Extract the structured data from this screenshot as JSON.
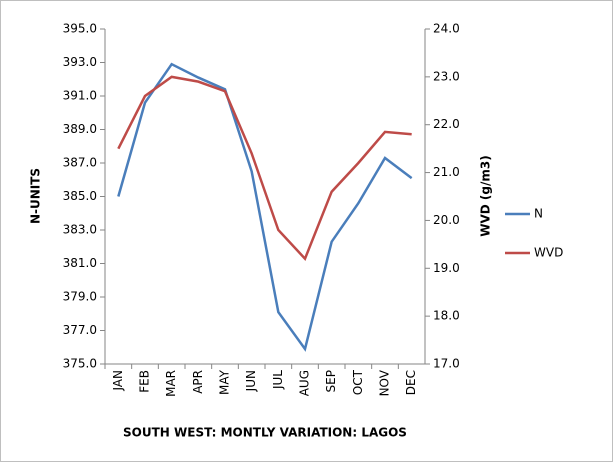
{
  "chart_data": {
    "type": "line",
    "title": "SOUTH WEST: MONTLY VARIATION: LAGOS",
    "y_label": "N-UNITS",
    "y2_label": "WVD (g/m3)",
    "categories": [
      "JAN",
      "FEB",
      "MAR",
      "APR",
      "MAY",
      "JUN",
      "JUL",
      "AUG",
      "SEP",
      "OCT",
      "NOV",
      "DEC"
    ],
    "series": [
      {
        "name": "N",
        "color": "#4a7ebb",
        "values": [
          385.0,
          390.6,
          392.9,
          392.1,
          391.4,
          386.5,
          378.1,
          375.9,
          382.3,
          384.6,
          387.3,
          386.1
        ]
      },
      {
        "name": "WVD",
        "color": "#be4b48",
        "axis": "y2",
        "values": [
          21.5,
          22.6,
          23.0,
          22.9,
          22.7,
          21.4,
          19.8,
          19.2,
          20.6,
          21.2,
          21.85,
          21.8
        ]
      }
    ],
    "ylim": [
      375,
      395
    ],
    "yticks": [
      {
        "value": 375,
        "label": "375.0"
      },
      {
        "value": 377,
        "label": "377.0"
      },
      {
        "value": 379,
        "label": "379.0"
      },
      {
        "value": 381,
        "label": "381.0"
      },
      {
        "value": 383,
        "label": "383.0"
      },
      {
        "value": 385,
        "label": "385.0"
      },
      {
        "value": 387,
        "label": "387.0"
      },
      {
        "value": 389,
        "label": "389.0"
      },
      {
        "value": 391,
        "label": "391.0"
      },
      {
        "value": 393,
        "label": "393.0"
      },
      {
        "value": 395,
        "label": "395.0"
      }
    ],
    "y2lim": [
      17,
      24
    ],
    "y2ticks": [
      {
        "value": 17,
        "label": "17.0"
      },
      {
        "value": 18,
        "label": "18.0"
      },
      {
        "value": 19,
        "label": "19.0"
      },
      {
        "value": 20,
        "label": "20.0"
      },
      {
        "value": 21,
        "label": "21.0"
      },
      {
        "value": 22,
        "label": "22.0"
      },
      {
        "value": 23,
        "label": "23.0"
      },
      {
        "value": 24,
        "label": "24.0"
      }
    ],
    "legend": "right"
  }
}
